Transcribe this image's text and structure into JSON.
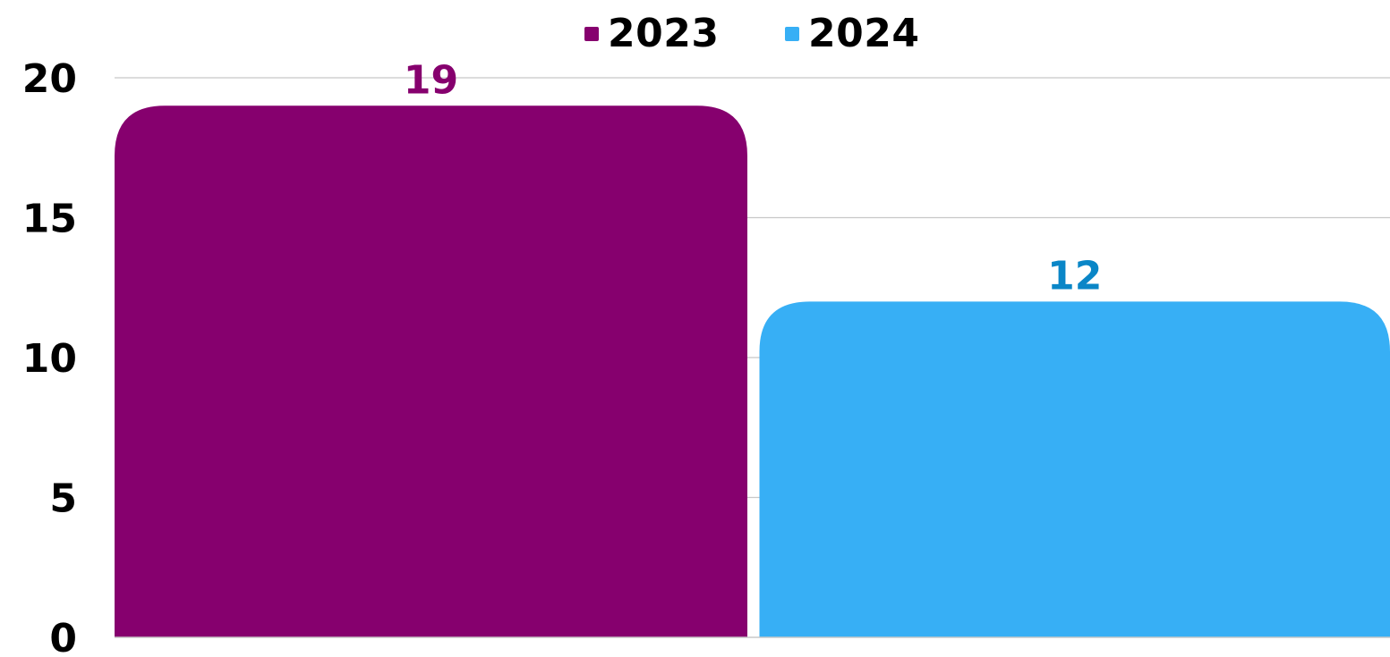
{
  "chart_data": {
    "type": "bar",
    "categories": [
      "2023",
      "2024"
    ],
    "values": [
      19,
      12
    ],
    "colors": {
      "2023": "#86006E",
      "2024": "#37AFF5"
    },
    "label_colors": {
      "2023": "#86006E",
      "2024": "#0A86C7"
    },
    "title": "",
    "xlabel": "",
    "ylabel": "",
    "ylim": [
      0,
      20
    ],
    "yticks": [
      "0",
      "5",
      "10",
      "15",
      "20"
    ],
    "grid": true,
    "legend_position": "top-center",
    "data_labels": [
      "19",
      "12"
    ]
  },
  "legend": {
    "items": [
      {
        "label": "2023",
        "color": "#86006E"
      },
      {
        "label": "2024",
        "color": "#37AFF5"
      }
    ]
  }
}
